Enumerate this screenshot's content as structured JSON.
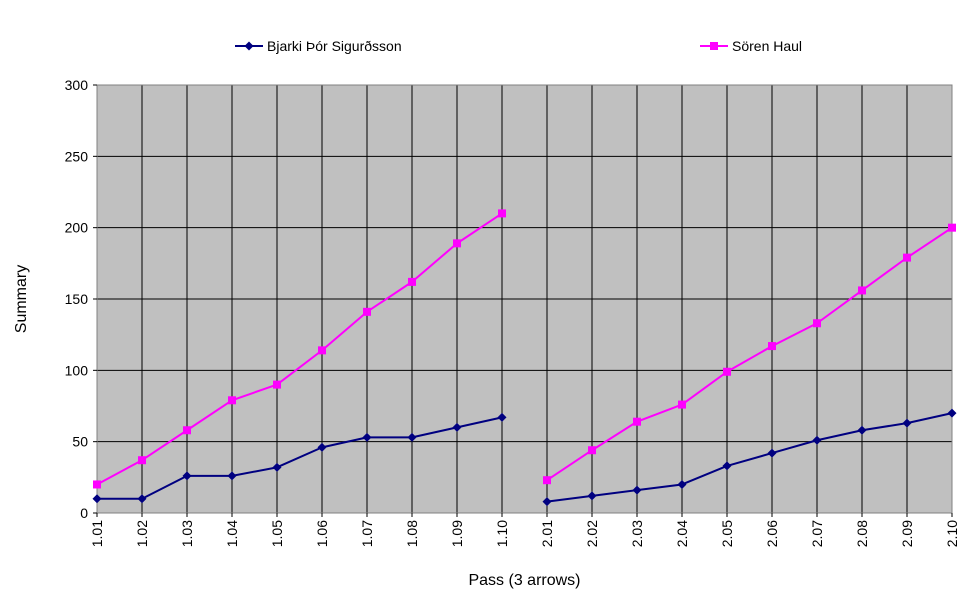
{
  "chart_data": {
    "type": "line",
    "title": "",
    "xlabel": "Pass (3 arrows)",
    "ylabel": "Summary",
    "ylim": [
      0,
      300
    ],
    "yticks": [
      0,
      50,
      100,
      150,
      200,
      250,
      300
    ],
    "grid": true,
    "legend_position": "top",
    "plot_background": "#c0c0c0",
    "categories": [
      "1.01",
      "1.02",
      "1.03",
      "1.04",
      "1.05",
      "1.06",
      "1.07",
      "1.08",
      "1.09",
      "1.10",
      "2.01",
      "2.02",
      "2.03",
      "2.04",
      "2.05",
      "2.06",
      "2.07",
      "2.08",
      "2.09",
      "2.10"
    ],
    "series": [
      {
        "name": "Bjarki Þór Sigurðsson",
        "color": "#000080",
        "marker": "diamond",
        "values": [
          10,
          10,
          26,
          26,
          32,
          46,
          53,
          53,
          60,
          67,
          8,
          12,
          16,
          20,
          33,
          42,
          51,
          58,
          63,
          70
        ]
      },
      {
        "name": "Sören Haul",
        "color": "#ff00ff",
        "marker": "square",
        "values": [
          20,
          37,
          58,
          79,
          90,
          114,
          141,
          162,
          189,
          210,
          23,
          44,
          64,
          76,
          99,
          117,
          133,
          156,
          179,
          200
        ]
      }
    ],
    "segments": [
      [
        0,
        9
      ],
      [
        10,
        19
      ]
    ]
  }
}
